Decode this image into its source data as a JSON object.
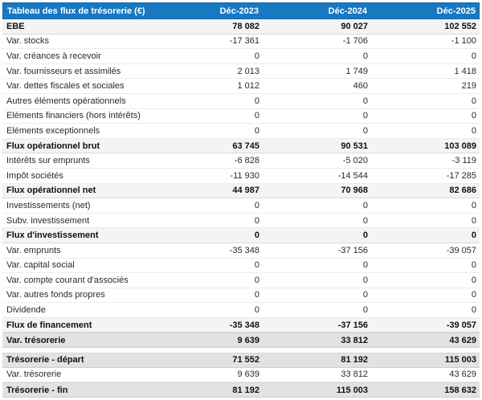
{
  "header": {
    "title": "Tableau des flux de trésorerie (€)",
    "columns": [
      "Déc-2023",
      "Déc-2024",
      "Déc-2025"
    ]
  },
  "colors": {
    "header_bg": "#1878C2",
    "header_border": "#1265A8",
    "subtotal_bg": "#F4F4F4",
    "total_bg": "#E2E2E2"
  },
  "rows": [
    {
      "label": "EBE",
      "values": [
        "78 082",
        "90 027",
        "102 552"
      ],
      "style": "subtotal"
    },
    {
      "label": "Var. stocks",
      "values": [
        "-17 361",
        "-1 706",
        "-1 100"
      ],
      "style": "normal"
    },
    {
      "label": "Var. créances à recevoir",
      "values": [
        "0",
        "0",
        "0"
      ],
      "style": "normal"
    },
    {
      "label": "Var. fournisseurs et assimilés",
      "values": [
        "2 013",
        "1 749",
        "1 418"
      ],
      "style": "normal"
    },
    {
      "label": "Var. dettes fiscales et sociales",
      "values": [
        "1 012",
        "460",
        "219"
      ],
      "style": "normal"
    },
    {
      "label": "Autres éléments opérationnels",
      "values": [
        "0",
        "0",
        "0"
      ],
      "style": "normal"
    },
    {
      "label": "Eléments financiers (hors intérêts)",
      "values": [
        "0",
        "0",
        "0"
      ],
      "style": "normal"
    },
    {
      "label": "Eléments exceptionnels",
      "values": [
        "0",
        "0",
        "0"
      ],
      "style": "normal"
    },
    {
      "label": "Flux opérationnel brut",
      "values": [
        "63 745",
        "90 531",
        "103 089"
      ],
      "style": "subtotal"
    },
    {
      "label": "Intérêts sur emprunts",
      "values": [
        "-6 828",
        "-5 020",
        "-3 119"
      ],
      "style": "normal"
    },
    {
      "label": "Impôt sociétés",
      "values": [
        "-11 930",
        "-14 544",
        "-17 285"
      ],
      "style": "normal"
    },
    {
      "label": "Flux opérationnel net",
      "values": [
        "44 987",
        "70 968",
        "82 686"
      ],
      "style": "subtotal"
    },
    {
      "label": "Investissements (net)",
      "values": [
        "0",
        "0",
        "0"
      ],
      "style": "normal"
    },
    {
      "label": "Subv. investissement",
      "values": [
        "0",
        "0",
        "0"
      ],
      "style": "normal"
    },
    {
      "label": "Flux d'investissement",
      "values": [
        "0",
        "0",
        "0"
      ],
      "style": "subtotal"
    },
    {
      "label": "Var. emprunts",
      "values": [
        "-35 348",
        "-37 156",
        "-39 057"
      ],
      "style": "normal"
    },
    {
      "label": "Var. capital social",
      "values": [
        "0",
        "0",
        "0"
      ],
      "style": "normal"
    },
    {
      "label": "Var. compte courant d'associés",
      "values": [
        "0",
        "0",
        "0"
      ],
      "style": "normal"
    },
    {
      "label": "Var. autres fonds propres",
      "values": [
        "0",
        "0",
        "0"
      ],
      "style": "normal"
    },
    {
      "label": "Dividende",
      "values": [
        "0",
        "0",
        "0"
      ],
      "style": "normal"
    },
    {
      "label": "Flux de financement",
      "values": [
        "-35 348",
        "-37 156",
        "-39 057"
      ],
      "style": "subtotal"
    },
    {
      "label": "Var. trésorerie",
      "values": [
        "9 639",
        "33 812",
        "43 629"
      ],
      "style": "total"
    },
    {
      "label": "",
      "values": null,
      "style": "spacer"
    },
    {
      "label": "Trésorerie - départ",
      "values": [
        "71 552",
        "81 192",
        "115 003"
      ],
      "style": "total"
    },
    {
      "label": "Var. trésorerie",
      "values": [
        "9 639",
        "33 812",
        "43 629"
      ],
      "style": "normal"
    },
    {
      "label": "Trésorerie - fin",
      "values": [
        "81 192",
        "115 003",
        "158 632"
      ],
      "style": "total"
    }
  ]
}
